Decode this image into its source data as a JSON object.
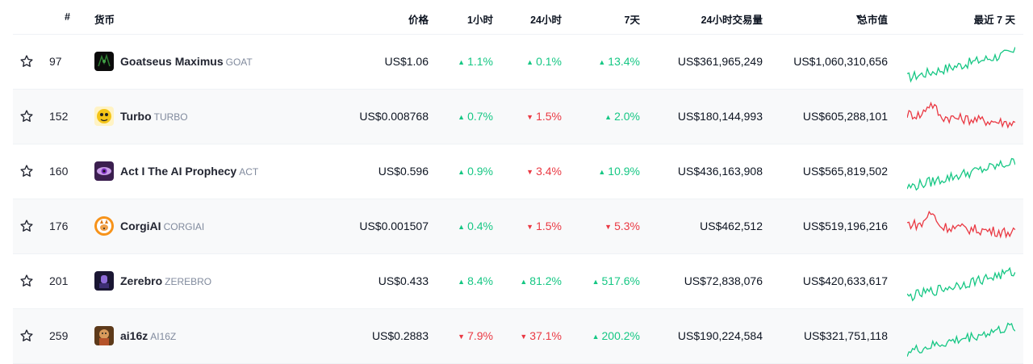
{
  "header": {
    "rank": "#",
    "coin": "货币",
    "price": "价格",
    "h1": "1小时",
    "h24": "24小时",
    "d7": "7天",
    "volume": "24小时交易量",
    "sort_arrow": "▼",
    "mcap": "总市值",
    "last7": "最近 7 天"
  },
  "colors": {
    "up": "#16c784",
    "down": "#ea3943"
  },
  "rows": [
    {
      "rank": "97",
      "name": "Goatseus Maximus",
      "symbol": "GOAT",
      "price": "US$1.06",
      "h1": "1.1%",
      "h1_dir": "up",
      "h24": "0.1%",
      "h24_dir": "up",
      "d7": "13.4%",
      "d7_dir": "up",
      "volume": "US$361,965,249",
      "mcap": "US$1,060,310,656",
      "trend": "up",
      "icon": "goat-logo-icon"
    },
    {
      "rank": "152",
      "name": "Turbo",
      "symbol": "TURBO",
      "price": "US$0.008768",
      "h1": "0.7%",
      "h1_dir": "up",
      "h24": "1.5%",
      "h24_dir": "down",
      "d7": "2.0%",
      "d7_dir": "up",
      "volume": "US$180,144,993",
      "mcap": "US$605,288,101",
      "trend": "down",
      "icon": "turbo-logo-icon"
    },
    {
      "rank": "160",
      "name": "Act I The AI Prophecy",
      "symbol": "ACT",
      "price": "US$0.596",
      "h1": "0.9%",
      "h1_dir": "up",
      "h24": "3.4%",
      "h24_dir": "down",
      "d7": "10.9%",
      "d7_dir": "up",
      "volume": "US$436,163,908",
      "mcap": "US$565,819,502",
      "trend": "up",
      "icon": "act-logo-icon"
    },
    {
      "rank": "176",
      "name": "CorgiAI",
      "symbol": "CORGIAI",
      "price": "US$0.001507",
      "h1": "0.4%",
      "h1_dir": "up",
      "h24": "1.5%",
      "h24_dir": "down",
      "d7": "5.3%",
      "d7_dir": "down",
      "volume": "US$462,512",
      "mcap": "US$519,196,216",
      "trend": "down",
      "icon": "corgi-logo-icon"
    },
    {
      "rank": "201",
      "name": "Zerebro",
      "symbol": "ZEREBRO",
      "price": "US$0.433",
      "h1": "8.4%",
      "h1_dir": "up",
      "h24": "81.2%",
      "h24_dir": "up",
      "d7": "517.6%",
      "d7_dir": "up",
      "volume": "US$72,838,076",
      "mcap": "US$420,633,617",
      "trend": "up",
      "icon": "zerebro-logo-icon"
    },
    {
      "rank": "259",
      "name": "ai16z",
      "symbol": "AI16Z",
      "price": "US$0.2883",
      "h1": "7.9%",
      "h1_dir": "down",
      "h24": "37.1%",
      "h24_dir": "down",
      "d7": "200.2%",
      "d7_dir": "up",
      "volume": "US$190,224,584",
      "mcap": "US$321,751,118",
      "trend": "up",
      "icon": "ai16z-logo-icon"
    }
  ]
}
